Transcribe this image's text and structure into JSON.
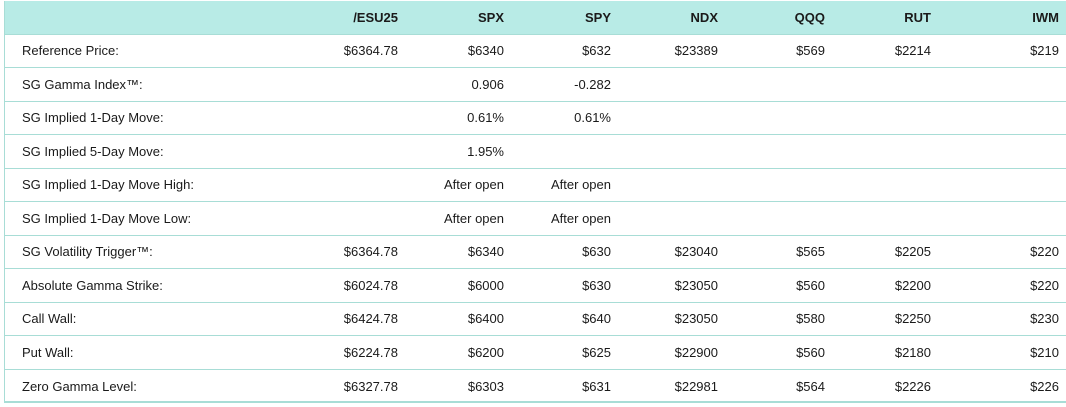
{
  "table": {
    "columns": [
      "/ESU25",
      "SPX",
      "SPY",
      "NDX",
      "QQQ",
      "RUT",
      "IWM"
    ],
    "rows": [
      {
        "label": "Reference Price:",
        "values": [
          "$6364.78",
          "$6340",
          "$632",
          "$23389",
          "$569",
          "$2214",
          "$219"
        ]
      },
      {
        "label": "SG Gamma Index™:",
        "values": [
          "",
          "0.906",
          "-0.282",
          "",
          "",
          "",
          ""
        ]
      },
      {
        "label": "SG Implied 1-Day Move:",
        "values": [
          "",
          "0.61%",
          "0.61%",
          "",
          "",
          "",
          ""
        ]
      },
      {
        "label": "SG Implied 5-Day Move:",
        "values": [
          "",
          "1.95%",
          "",
          "",
          "",
          "",
          ""
        ]
      },
      {
        "label": "SG Implied 1-Day Move High:",
        "values": [
          "",
          "After open",
          "After open",
          "",
          "",
          "",
          ""
        ]
      },
      {
        "label": "SG Implied 1-Day Move Low:",
        "values": [
          "",
          "After open",
          "After open",
          "",
          "",
          "",
          ""
        ]
      },
      {
        "label": "SG Volatility Trigger™:",
        "values": [
          "$6364.78",
          "$6340",
          "$630",
          "$23040",
          "$565",
          "$2205",
          "$220"
        ]
      },
      {
        "label": "Absolute Gamma Strike:",
        "values": [
          "$6024.78",
          "$6000",
          "$630",
          "$23050",
          "$560",
          "$2200",
          "$220"
        ]
      },
      {
        "label": "Call Wall:",
        "values": [
          "$6424.78",
          "$6400",
          "$640",
          "$23050",
          "$580",
          "$2250",
          "$230"
        ]
      },
      {
        "label": "Put Wall:",
        "values": [
          "$6224.78",
          "$6200",
          "$625",
          "$22900",
          "$560",
          "$2180",
          "$210"
        ]
      },
      {
        "label": "Zero Gamma Level:",
        "values": [
          "$6327.78",
          "$6303",
          "$631",
          "$22981",
          "$564",
          "$2226",
          "$226"
        ]
      }
    ]
  }
}
